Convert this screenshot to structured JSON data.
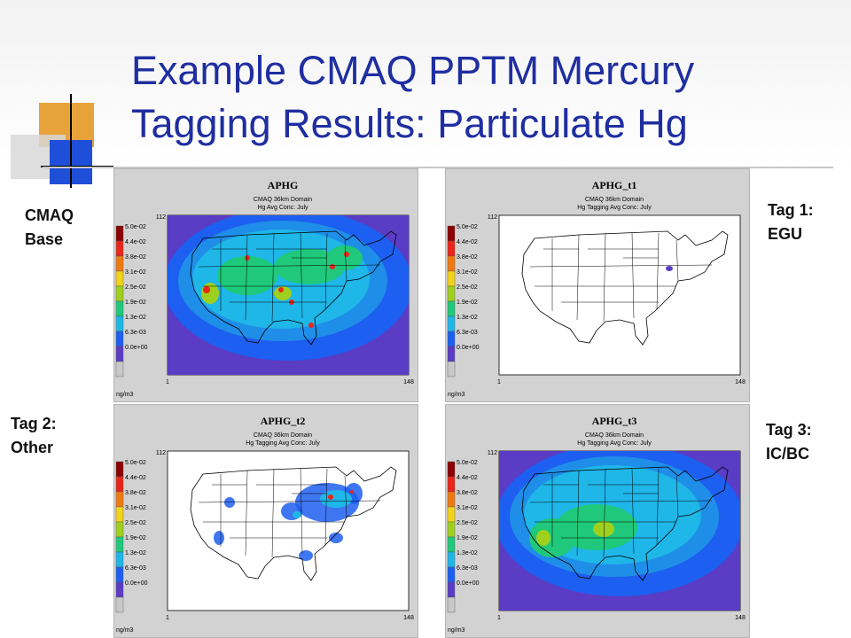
{
  "slide": {
    "title_line1": "Example CMAQ PPTM Mercury",
    "title_line2": "Tagging Results: Particulate Hg"
  },
  "labels": {
    "base": [
      "CMAQ",
      "Base"
    ],
    "tag1": [
      "Tag 1:",
      "EGU"
    ],
    "tag2": [
      "Tag 2:",
      "Other"
    ],
    "tag3": [
      "Tag 3:",
      "IC/BC"
    ]
  },
  "colorbar": {
    "ticks": [
      "5.0e-02",
      "4.4e-02",
      "3.8e-02",
      "3.1e-02",
      "2.5e-02",
      "1.9e-02",
      "1.3e-02",
      "6.3e-03",
      "0.0e+00"
    ],
    "colors": [
      "#8b0000",
      "#e8261a",
      "#f07a12",
      "#f2d31c",
      "#9fd01e",
      "#1fc87a",
      "#1fb6e8",
      "#1d5ff0",
      "#5b3cc4",
      "#c8c8c8"
    ],
    "unit": "ng/m3"
  },
  "axes": {
    "y_top": "112",
    "x_left": "1",
    "x_right": "148"
  },
  "panels": [
    {
      "id": "aphg",
      "title": "APHG",
      "sub1": "CMAQ 36km Domain",
      "sub2": "Hg Avg Conc: July",
      "field": "base"
    },
    {
      "id": "aphg_t1",
      "title": "APHG_t1",
      "sub1": "CMAQ 36km Domain",
      "sub2": "Hg Tagging Avg Conc: July",
      "field": "egu"
    },
    {
      "id": "aphg_t2",
      "title": "APHG_t2",
      "sub1": "CMAQ 36km Domain",
      "sub2": "Hg Tagging Avg Conc: July",
      "field": "other"
    },
    {
      "id": "aphg_t3",
      "title": "APHG_t3",
      "sub1": "CMAQ 36km Domain",
      "sub2": "Hg Tagging Avg Conc: July",
      "field": "icbc"
    }
  ]
}
